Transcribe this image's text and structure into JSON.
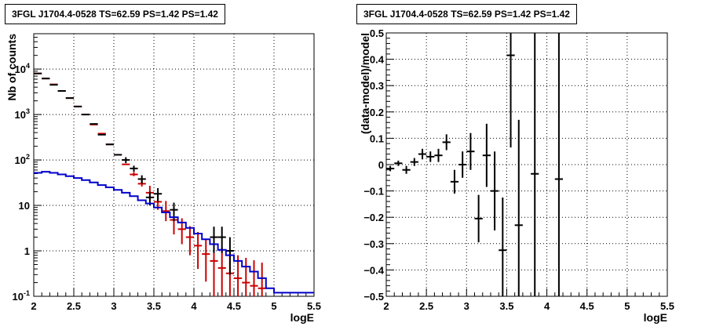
{
  "chart_data": [
    {
      "type": "histogram-log",
      "title": "3FGL J1704.4-0528 TS=62.59 PS=1.42 PS=1.42",
      "xlabel": "logE",
      "ylabel": "Nb of counts",
      "xlim": [
        2,
        5.5
      ],
      "ylim": [
        0.1,
        60000
      ],
      "yscale": "log",
      "grid": true,
      "x_ticks": [
        "2",
        "2.5",
        "3",
        "3.5",
        "4",
        "4.5",
        "5",
        "5.5"
      ],
      "y_ticks": [
        {
          "value": 0.1,
          "label": "10",
          "sup": "-1"
        },
        {
          "value": 1,
          "label": "1",
          "sup": ""
        },
        {
          "value": 10,
          "label": "10",
          "sup": ""
        },
        {
          "value": 100,
          "label": "10",
          "sup": "2"
        },
        {
          "value": 1000,
          "label": "10",
          "sup": "3"
        },
        {
          "value": 10000,
          "label": "10",
          "sup": "4"
        }
      ],
      "bin_width": 0.1,
      "series": [
        {
          "color": "#cc0000",
          "role": "model",
          "x": [
            2.05,
            2.15,
            2.25,
            2.35,
            2.45,
            2.55,
            2.65,
            2.75,
            2.85,
            2.95,
            3.05,
            3.15,
            3.25,
            3.35,
            3.45,
            3.55,
            3.65,
            3.75,
            3.85,
            3.95,
            4.05,
            4.15,
            4.25,
            4.35,
            4.45,
            4.55,
            4.65,
            4.75,
            4.85
          ],
          "y": [
            8000,
            6200,
            4600,
            3300,
            2300,
            1500,
            1000,
            600,
            380,
            220,
            130,
            80,
            48,
            30,
            19,
            12,
            7.5,
            4.8,
            3.0,
            2.0,
            1.3,
            0.85,
            0.6,
            0.42,
            0.32,
            0.25,
            0.2,
            0.17,
            0.15
          ],
          "err_lo": [
            0,
            0,
            0,
            0,
            0,
            0,
            0,
            0,
            0,
            0,
            0,
            0,
            4,
            4,
            6,
            4,
            3,
            2.5,
            1.6,
            1.2,
            0.9,
            0.64,
            0.5,
            0.37,
            0.29,
            0.23,
            0.19,
            0.165,
            0.148
          ],
          "err_hi": [
            0,
            0,
            0,
            0,
            0,
            0,
            0,
            0,
            0,
            0,
            0,
            0,
            6,
            6,
            8,
            6,
            5,
            3.5,
            2.2,
            1.5,
            1.3,
            1.0,
            0.9,
            0.75,
            0.6,
            0.55,
            0.5,
            0.45,
            0.4
          ]
        },
        {
          "color": "#000000",
          "role": "data",
          "x": [
            2.05,
            2.15,
            2.25,
            2.35,
            2.45,
            2.55,
            2.65,
            2.75,
            2.85,
            2.95,
            3.05,
            3.15,
            3.25,
            3.35,
            3.45,
            3.55,
            3.75,
            4.25,
            4.35,
            4.45
          ],
          "y": [
            8000,
            6200,
            4500,
            3300,
            2300,
            1500,
            1000,
            620,
            360,
            220,
            130,
            100,
            65,
            38,
            15,
            18,
            8,
            2,
            2,
            1
          ],
          "err_lo": [
            0,
            0,
            0,
            0,
            0,
            0,
            0,
            0,
            0,
            0,
            0,
            15,
            10,
            8,
            5,
            6,
            3.5,
            1.1,
            1.1,
            0.7
          ],
          "err_hi": [
            0,
            0,
            0,
            0,
            0,
            0,
            0,
            0,
            0,
            0,
            0,
            15,
            10,
            8,
            5,
            6,
            3.5,
            1.4,
            1.4,
            1.0
          ]
        },
        {
          "color": "#0000cc",
          "role": "background",
          "step": true,
          "x": [
            2.05,
            2.15,
            2.25,
            2.35,
            2.45,
            2.55,
            2.65,
            2.75,
            2.85,
            2.95,
            3.05,
            3.15,
            3.25,
            3.35,
            3.45,
            3.55,
            3.65,
            3.75,
            3.85,
            3.95,
            4.05,
            4.15,
            4.25,
            4.35,
            4.45,
            4.55,
            4.65,
            4.75,
            4.85,
            4.95,
            5.05,
            5.15,
            5.25,
            5.35,
            5.45
          ],
          "y": [
            52,
            55,
            52,
            48,
            44,
            40,
            36,
            32,
            28,
            25,
            22,
            19,
            16,
            13,
            11,
            9,
            7,
            5.5,
            4.2,
            3.2,
            2.4,
            1.8,
            1.4,
            1.05,
            0.8,
            0.6,
            0.45,
            0.35,
            0.25,
            0.15,
            0.12,
            0.12,
            0.12,
            0.12,
            0.12
          ]
        }
      ]
    },
    {
      "type": "residuals",
      "title": "3FGL J1704.4-0528 TS=62.59 PS=1.42 PS=1.42",
      "xlabel": "logE",
      "ylabel": "(data-model)/model",
      "xlim": [
        2,
        5.5
      ],
      "ylim": [
        -0.5,
        0.5
      ],
      "grid": true,
      "x_ticks": [
        "2",
        "2.5",
        "3",
        "3.5",
        "4",
        "4.5",
        "5",
        "5.5"
      ],
      "y_ticks": [
        "-0.5",
        "-0.4",
        "-0.3",
        "-0.2",
        "-0.1",
        "0",
        "0.1",
        "0.2",
        "0.3",
        "0.4",
        "0.5"
      ],
      "bin_width": 0.1,
      "series": [
        {
          "color": "#000000",
          "x": [
            2.05,
            2.15,
            2.25,
            2.35,
            2.45,
            2.55,
            2.65,
            2.75,
            2.85,
            2.95,
            3.05,
            3.15,
            3.25,
            3.35,
            3.45,
            3.55,
            3.65,
            3.85,
            4.15
          ],
          "y": [
            -0.015,
            0.005,
            -0.02,
            0.01,
            0.04,
            0.03,
            0.035,
            0.085,
            -0.065,
            0.0,
            0.05,
            -0.205,
            0.035,
            -0.1,
            -0.325,
            0.415,
            -0.23,
            -0.035,
            -0.055
          ],
          "err": [
            0.01,
            0.01,
            0.015,
            0.015,
            0.02,
            0.02,
            0.025,
            0.03,
            0.045,
            0.05,
            0.07,
            0.09,
            0.12,
            0.15,
            0.2,
            0.35,
            0.4,
            0.6,
            0.8
          ]
        }
      ]
    }
  ]
}
